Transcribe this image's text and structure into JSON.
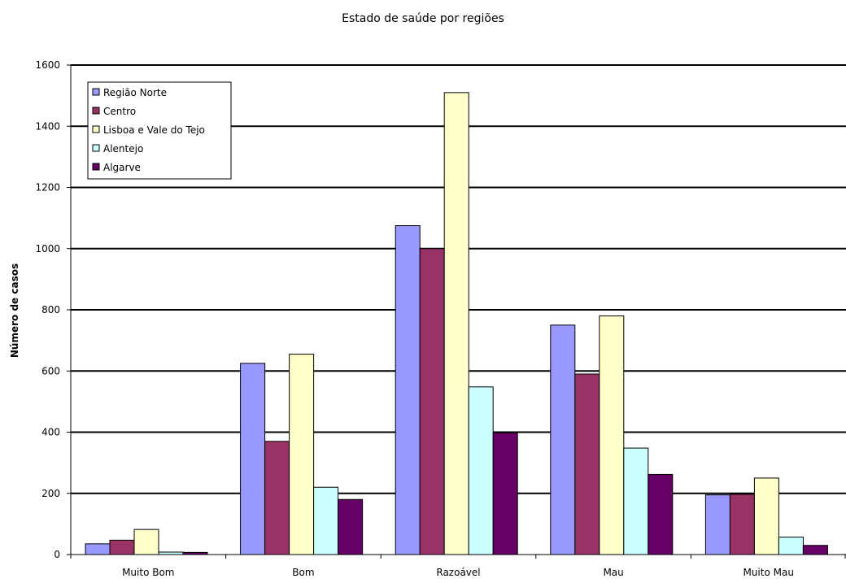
{
  "chart_data": {
    "type": "bar",
    "title": "Estado de saúde por regiões",
    "xlabel": "",
    "ylabel": "Número de casos",
    "categories": [
      "Muito Bom",
      "Bom",
      "Razoável",
      "Mau",
      "Muito Mau"
    ],
    "series": [
      {
        "name": "Região Norte",
        "color": "#9999FF",
        "values": [
          35,
          625,
          1075,
          750,
          195
        ]
      },
      {
        "name": "Centro",
        "color": "#993366",
        "values": [
          47,
          370,
          1000,
          590,
          197
        ]
      },
      {
        "name": "Lisboa e Vale do Tejo",
        "color": "#FFFFCC",
        "values": [
          82,
          655,
          1510,
          780,
          250
        ]
      },
      {
        "name": "Alentejo",
        "color": "#CCFFFF",
        "values": [
          8,
          220,
          548,
          348,
          57
        ]
      },
      {
        "name": "Algarve",
        "color": "#660066",
        "values": [
          7,
          180,
          398,
          262,
          30
        ]
      }
    ],
    "ylim": [
      0,
      1600
    ],
    "yticks": [
      0,
      200,
      400,
      600,
      800,
      1000,
      1200,
      1400,
      1600
    ],
    "grid": true,
    "legend_position": "top-left"
  }
}
